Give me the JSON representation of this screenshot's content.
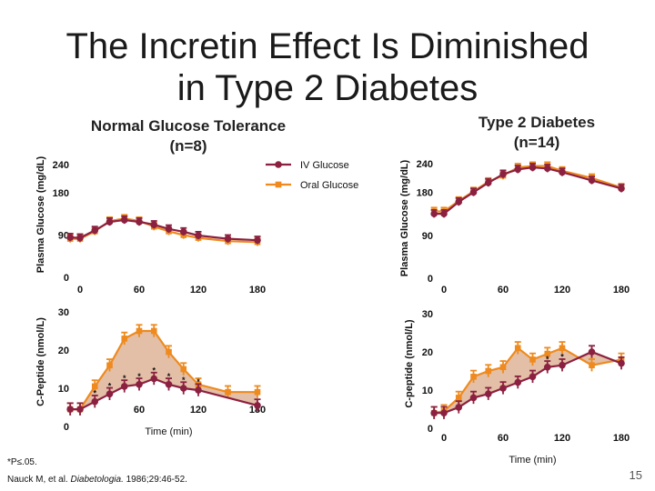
{
  "title_line1": "The Incretin Effect Is Diminished",
  "title_line2": "in Type 2 Diabetes",
  "left_title_line1": "Normal Glucose Tolerance",
  "left_title_line2": "(n=8)",
  "right_title_line1": "Type 2 Diabetes",
  "right_title_line2": "(n=14)",
  "footnote_p": "*P≤.05.",
  "citation_prefix": "Nauck M, et al. ",
  "citation_journal": "Diabetologia.",
  "citation_suffix": " 1986;29:46-52.",
  "page_number": "15",
  "colors": {
    "iv": "#8b2040",
    "oral": "#ee8a1e",
    "fill": "#d9a98a"
  },
  "chart_data": [
    {
      "id": "ngt-glucose",
      "type": "line",
      "title": "Normal Glucose Tolerance (n=8)",
      "xlabel": "",
      "ylabel": "Plasma Glucose (mg/dL)",
      "xlim": [
        0,
        180
      ],
      "ylim": [
        0,
        240
      ],
      "xticks": [
        "0",
        "60",
        "120",
        "180"
      ],
      "yticks": [
        "0",
        "90",
        "180",
        "240"
      ],
      "legend": [
        "IV Glucose",
        "Oral Glucose"
      ],
      "series": [
        {
          "name": "IV Glucose",
          "x": [
            -10,
            0,
            15,
            30,
            45,
            60,
            75,
            90,
            105,
            120,
            150,
            180
          ],
          "y": [
            85,
            84,
            100,
            118,
            122,
            118,
            112,
            103,
            97,
            89,
            82,
            79
          ]
        },
        {
          "name": "Oral Glucose",
          "x": [
            -10,
            0,
            15,
            30,
            45,
            60,
            75,
            90,
            105,
            120,
            150,
            180
          ],
          "y": [
            82,
            82,
            98,
            120,
            125,
            120,
            108,
            98,
            90,
            84,
            77,
            75
          ]
        }
      ]
    },
    {
      "id": "t2d-glucose",
      "type": "line",
      "title": "Type 2 Diabetes (n=14)",
      "xlabel": "",
      "ylabel": "Plasma Glucose (mg/dL)",
      "xlim": [
        0,
        180
      ],
      "ylim": [
        0,
        240
      ],
      "xticks": [
        "0",
        "60",
        "120",
        "180"
      ],
      "yticks": [
        "0",
        "90",
        "180",
        "240"
      ],
      "series": [
        {
          "name": "IV Glucose",
          "x": [
            -10,
            0,
            15,
            30,
            45,
            60,
            75,
            90,
            105,
            120,
            150,
            180
          ],
          "y": [
            135,
            135,
            160,
            180,
            200,
            218,
            228,
            232,
            230,
            222,
            205,
            188
          ]
        },
        {
          "name": "Oral Glucose",
          "x": [
            -10,
            0,
            15,
            30,
            45,
            60,
            75,
            90,
            105,
            120,
            150,
            180
          ],
          "y": [
            140,
            140,
            162,
            182,
            202,
            215,
            232,
            235,
            235,
            225,
            210,
            190
          ]
        }
      ]
    },
    {
      "id": "ngt-cpeptide",
      "type": "line",
      "title": "",
      "xlabel": "Time (min)",
      "ylabel": "C-Peptide (nmol/L)",
      "xlim": [
        0,
        180
      ],
      "ylim": [
        0,
        30
      ],
      "xticks": [
        "0",
        "60",
        "120",
        "180"
      ],
      "yticks": [
        "0",
        "10",
        "20",
        "30"
      ],
      "series": [
        {
          "name": "IV Glucose",
          "x": [
            -10,
            0,
            15,
            30,
            45,
            60,
            75,
            90,
            105,
            120,
            180
          ],
          "y": [
            4.5,
            4.5,
            6.5,
            8.5,
            10.5,
            11,
            12.5,
            11,
            10,
            9.5,
            5.5
          ]
        },
        {
          "name": "Oral Glucose",
          "x": [
            -10,
            0,
            15,
            30,
            45,
            60,
            75,
            90,
            105,
            120,
            150,
            180
          ],
          "y": [
            4.5,
            4.5,
            10.5,
            16,
            23,
            25,
            25,
            19.5,
            15,
            11,
            9,
            9
          ]
        }
      ],
      "annotations": [
        "*",
        "*",
        "*",
        "*",
        "*",
        "*",
        "*",
        "*"
      ]
    },
    {
      "id": "t2d-cpeptide",
      "type": "line",
      "title": "",
      "xlabel": "Time (min)",
      "ylabel": "C-peptide (nmol/L)",
      "xlim": [
        0,
        180
      ],
      "ylim": [
        0,
        30
      ],
      "xticks": [
        "0",
        "60",
        "120",
        "180"
      ],
      "yticks": [
        "0",
        "10",
        "20",
        "30"
      ],
      "series": [
        {
          "name": "IV Glucose",
          "x": [
            -10,
            0,
            15,
            30,
            45,
            60,
            75,
            90,
            105,
            120,
            150,
            180
          ],
          "y": [
            4,
            4,
            5.5,
            8,
            9,
            10.5,
            12,
            13.5,
            16,
            16.5,
            20,
            17
          ]
        },
        {
          "name": "Oral Glucose",
          "x": [
            -10,
            0,
            15,
            30,
            45,
            60,
            75,
            90,
            105,
            120,
            150,
            180
          ],
          "y": [
            4,
            4.5,
            8,
            13.5,
            15,
            16,
            21,
            18,
            19.5,
            21,
            16.5,
            18
          ]
        }
      ],
      "annotations": [
        "*",
        "*"
      ]
    }
  ]
}
